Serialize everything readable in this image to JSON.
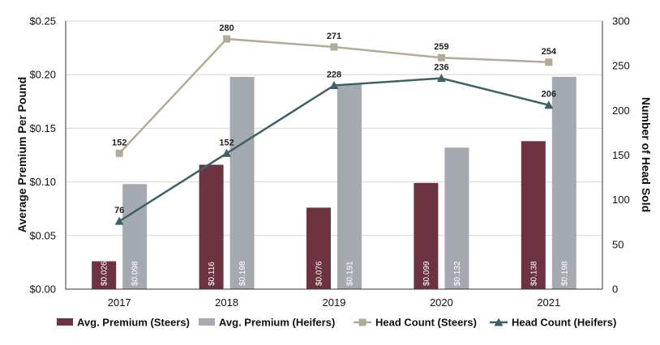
{
  "chart_data": {
    "type": "bar",
    "categories": [
      "2017",
      "2018",
      "2019",
      "2020",
      "2021"
    ],
    "ylabel": "Average Premium Per Pound",
    "y2label": "Number of Head Sold",
    "ylim": [
      0,
      0.25
    ],
    "y2lim": [
      0,
      300
    ],
    "yticks": [
      "$0.00",
      "$0.05",
      "$0.10",
      "$0.15",
      "$0.20",
      "$0.25"
    ],
    "y2ticks": [
      "0",
      "50",
      "100",
      "150",
      "200",
      "250",
      "300"
    ],
    "grid": true,
    "legend_position": "bottom",
    "series": [
      {
        "name": "Avg. Premium (Steers)",
        "kind": "bar",
        "axis": "left",
        "color": "#6e3341",
        "values": [
          0.026,
          0.116,
          0.076,
          0.099,
          0.138
        ],
        "labels": [
          "$0.026",
          "$0.116",
          "$0.076",
          "$0.099",
          "$0.138"
        ]
      },
      {
        "name": "Avg. Premium (Heifers)",
        "kind": "bar",
        "axis": "left",
        "color": "#a5a9b0",
        "values": [
          0.098,
          0.198,
          0.191,
          0.132,
          0.198
        ],
        "labels": [
          "$0.098",
          "$0.198",
          "$0.191",
          "$0.132",
          "$0.198"
        ]
      },
      {
        "name": "Head Count (Steers)",
        "kind": "line",
        "axis": "right",
        "marker": "square",
        "color": "#b3ab97",
        "values": [
          152,
          280,
          271,
          259,
          254
        ],
        "labels": [
          "152",
          "280",
          "271",
          "259",
          "254"
        ]
      },
      {
        "name": "Head Count (Heifers)",
        "kind": "line",
        "axis": "right",
        "marker": "triangle",
        "color": "#3c6268",
        "values": [
          76,
          152,
          228,
          236,
          206
        ],
        "labels": [
          "76",
          "152",
          "228",
          "236",
          "206"
        ]
      }
    ]
  }
}
